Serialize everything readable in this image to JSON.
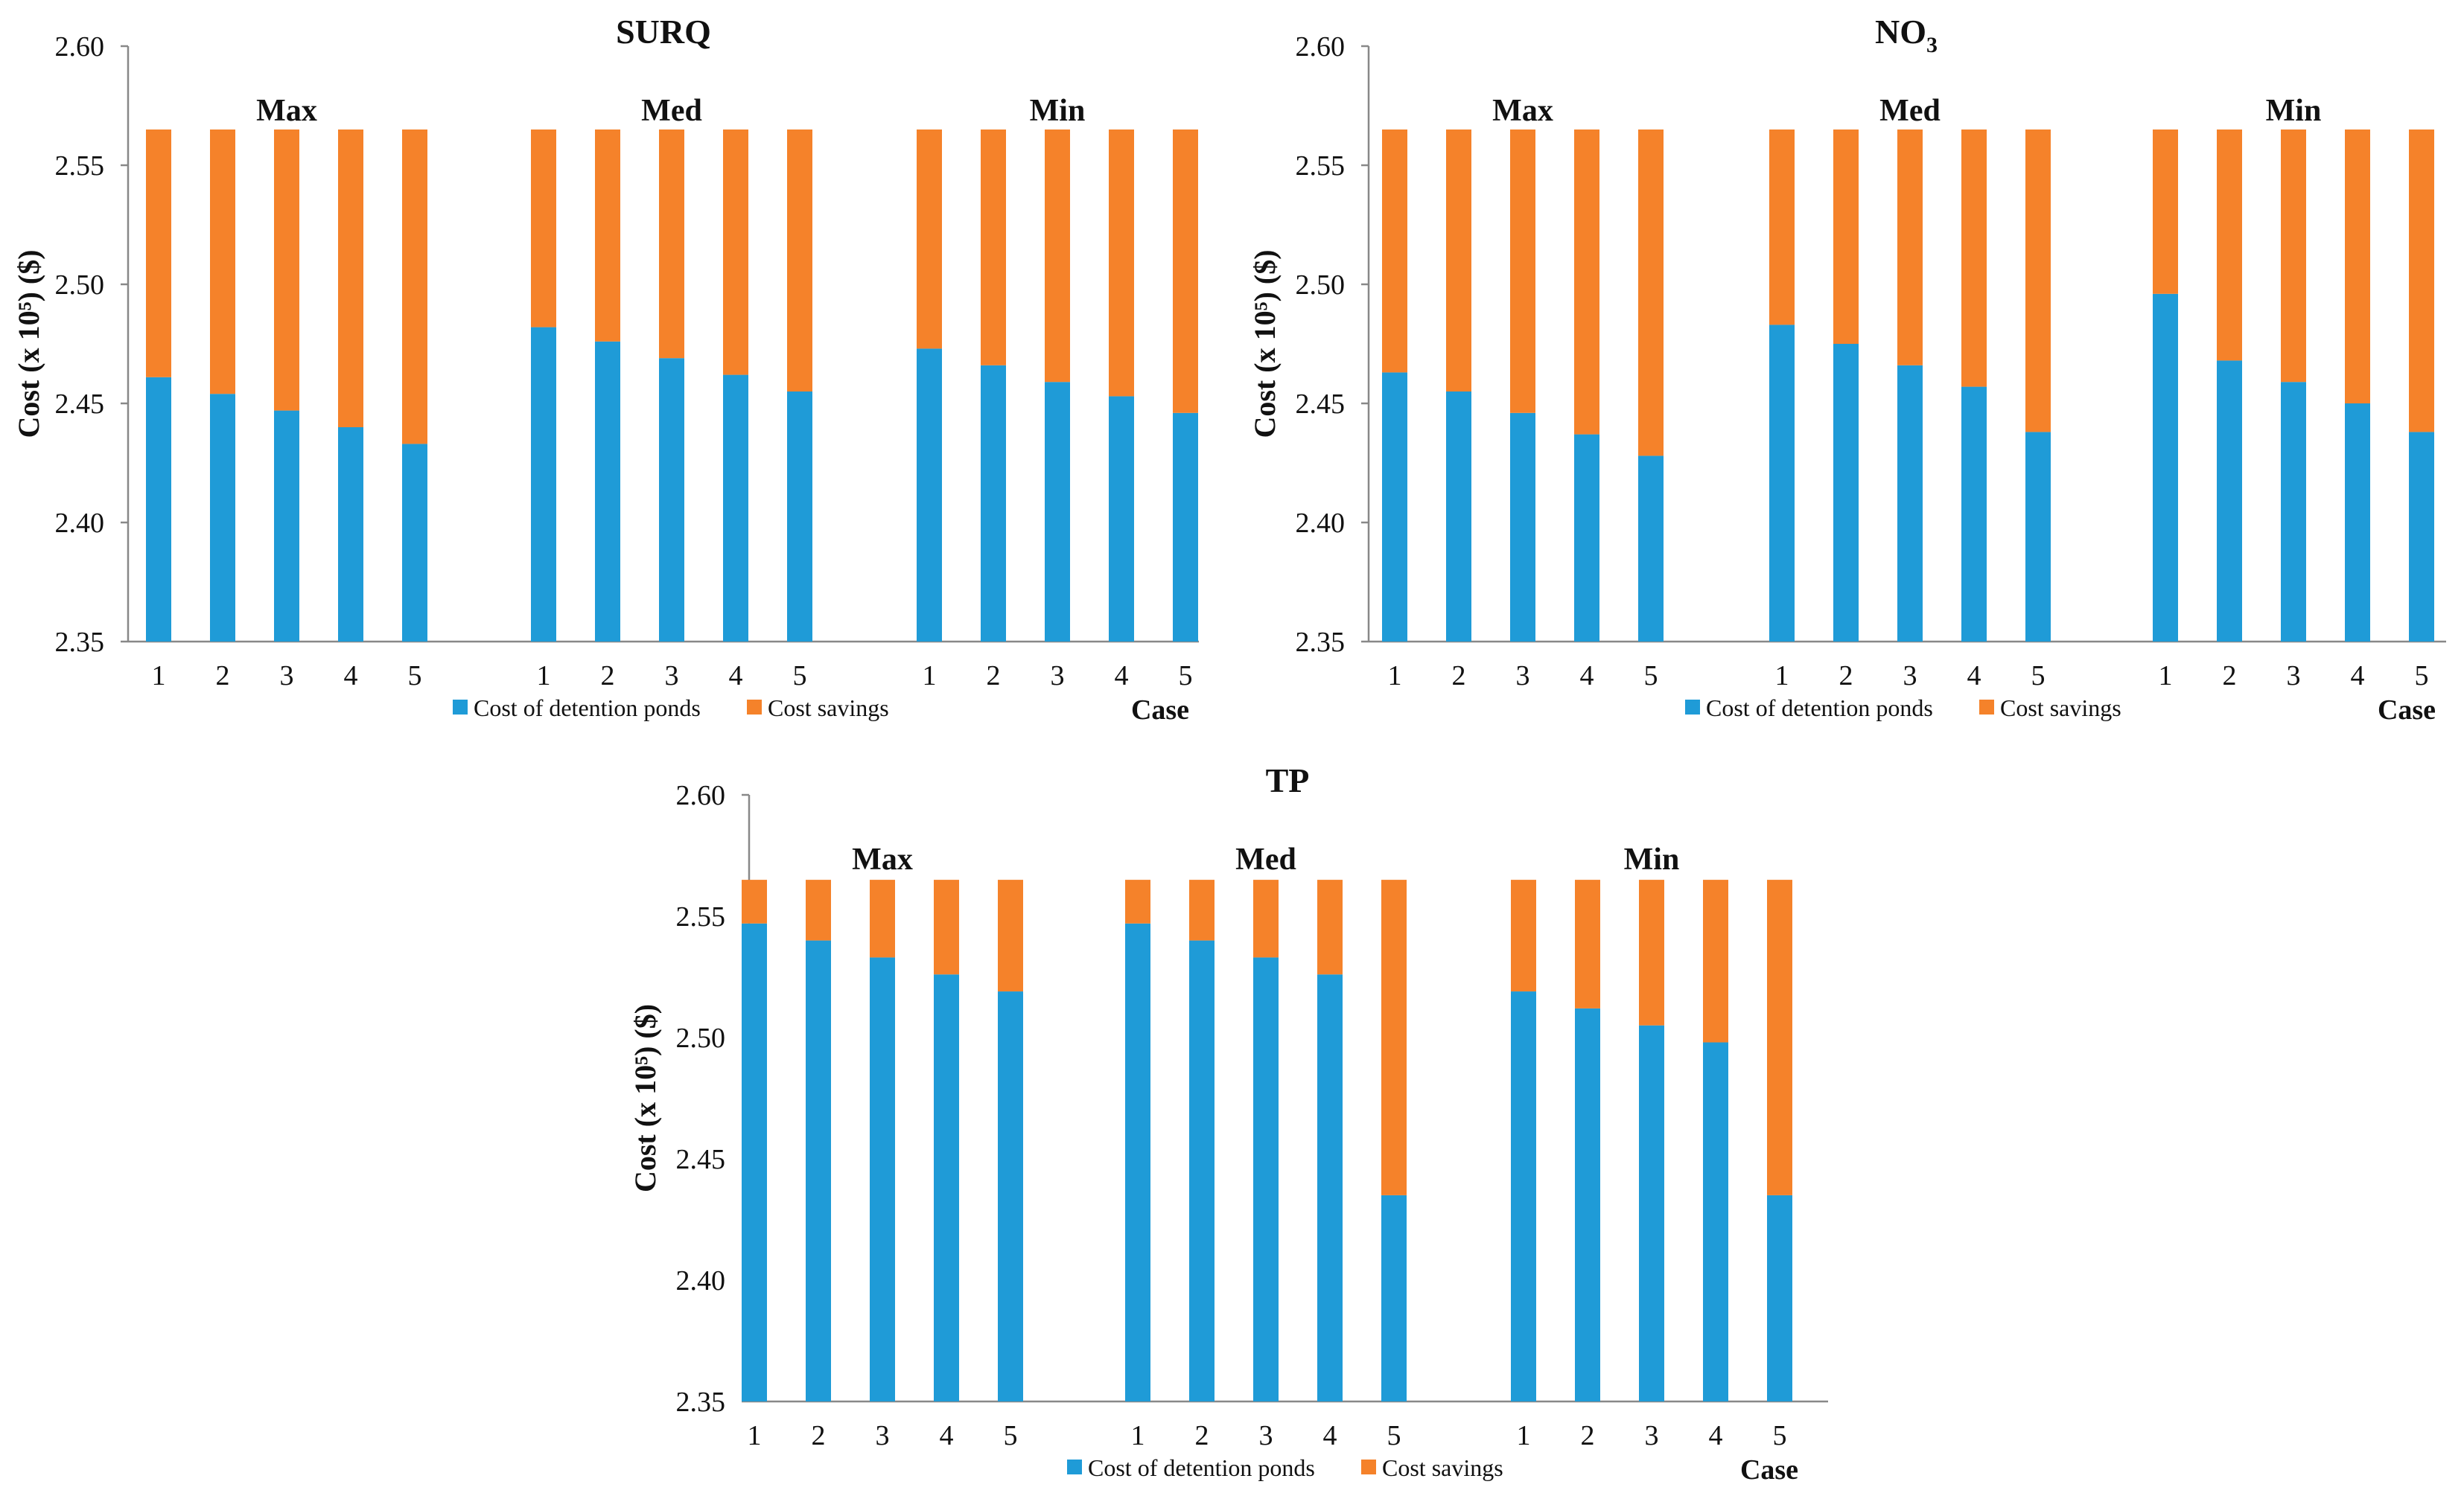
{
  "colors": {
    "detention": "#1f9bd7",
    "savings": "#f5822a"
  },
  "legend": [
    "Cost of detention ponds",
    "Cost savings"
  ],
  "case_label": "Case",
  "chart_data": [
    {
      "type": "bar",
      "stacked": true,
      "title": "SURQ",
      "title_sub": "",
      "ylabel": "Cost (x 10⁵) ($)",
      "xlabel": "Case",
      "ylim": [
        2.35,
        2.6
      ],
      "yticks": [
        "2.35",
        "2.40",
        "2.45",
        "2.50",
        "2.55",
        "2.60"
      ],
      "groups": [
        "Max",
        "Med",
        "Min"
      ],
      "categories": [
        "1",
        "2",
        "3",
        "4",
        "5"
      ],
      "total": 2.565,
      "series": [
        {
          "name": "Cost of detention ponds",
          "values": [
            [
              2.461,
              2.454,
              2.447,
              2.44,
              2.433
            ],
            [
              2.482,
              2.476,
              2.469,
              2.462,
              2.455
            ],
            [
              2.473,
              2.466,
              2.459,
              2.453,
              2.446
            ]
          ]
        },
        {
          "name": "Cost savings",
          "values": [
            [
              0.104,
              0.111,
              0.118,
              0.125,
              0.132
            ],
            [
              0.083,
              0.089,
              0.096,
              0.103,
              0.11
            ],
            [
              0.092,
              0.099,
              0.106,
              0.112,
              0.119
            ]
          ]
        }
      ]
    },
    {
      "type": "bar",
      "stacked": true,
      "title": "NO",
      "title_sub": "3",
      "ylabel": "Cost (x 10⁵) ($)",
      "xlabel": "Case",
      "ylim": [
        2.35,
        2.6
      ],
      "yticks": [
        "2.35",
        "2.40",
        "2.45",
        "2.50",
        "2.55",
        "2.60"
      ],
      "groups": [
        "Max",
        "Med",
        "Min"
      ],
      "categories": [
        "1",
        "2",
        "3",
        "4",
        "5"
      ],
      "total": 2.565,
      "series": [
        {
          "name": "Cost of detention ponds",
          "values": [
            [
              2.463,
              2.455,
              2.446,
              2.437,
              2.428
            ],
            [
              2.483,
              2.475,
              2.466,
              2.457,
              2.438
            ],
            [
              2.496,
              2.468,
              2.459,
              2.45,
              2.438
            ]
          ]
        },
        {
          "name": "Cost savings",
          "values": [
            [
              0.102,
              0.11,
              0.119,
              0.128,
              0.137
            ],
            [
              0.082,
              0.09,
              0.099,
              0.108,
              0.127
            ],
            [
              0.069,
              0.097,
              0.106,
              0.115,
              0.127
            ]
          ]
        }
      ]
    },
    {
      "type": "bar",
      "stacked": true,
      "title": "TP",
      "title_sub": "",
      "ylabel": "Cost (x 10⁵) ($)",
      "xlabel": "Case",
      "ylim": [
        2.35,
        2.6
      ],
      "yticks": [
        "2.35",
        "2.40",
        "2.45",
        "2.50",
        "2.55",
        "2.60"
      ],
      "groups": [
        "Max",
        "Med",
        "Min"
      ],
      "categories": [
        "1",
        "2",
        "3",
        "4",
        "5"
      ],
      "total": 2.565,
      "series": [
        {
          "name": "Cost of detention ponds",
          "values": [
            [
              2.547,
              2.54,
              2.533,
              2.526,
              2.519
            ],
            [
              2.547,
              2.54,
              2.533,
              2.526,
              2.435
            ],
            [
              2.519,
              2.512,
              2.505,
              2.498,
              2.435
            ]
          ]
        },
        {
          "name": "Cost savings",
          "values": [
            [
              0.018,
              0.025,
              0.032,
              0.039,
              0.046
            ],
            [
              0.018,
              0.025,
              0.032,
              0.039,
              0.13
            ],
            [
              0.046,
              0.053,
              0.06,
              0.067,
              0.13
            ]
          ]
        }
      ]
    }
  ]
}
